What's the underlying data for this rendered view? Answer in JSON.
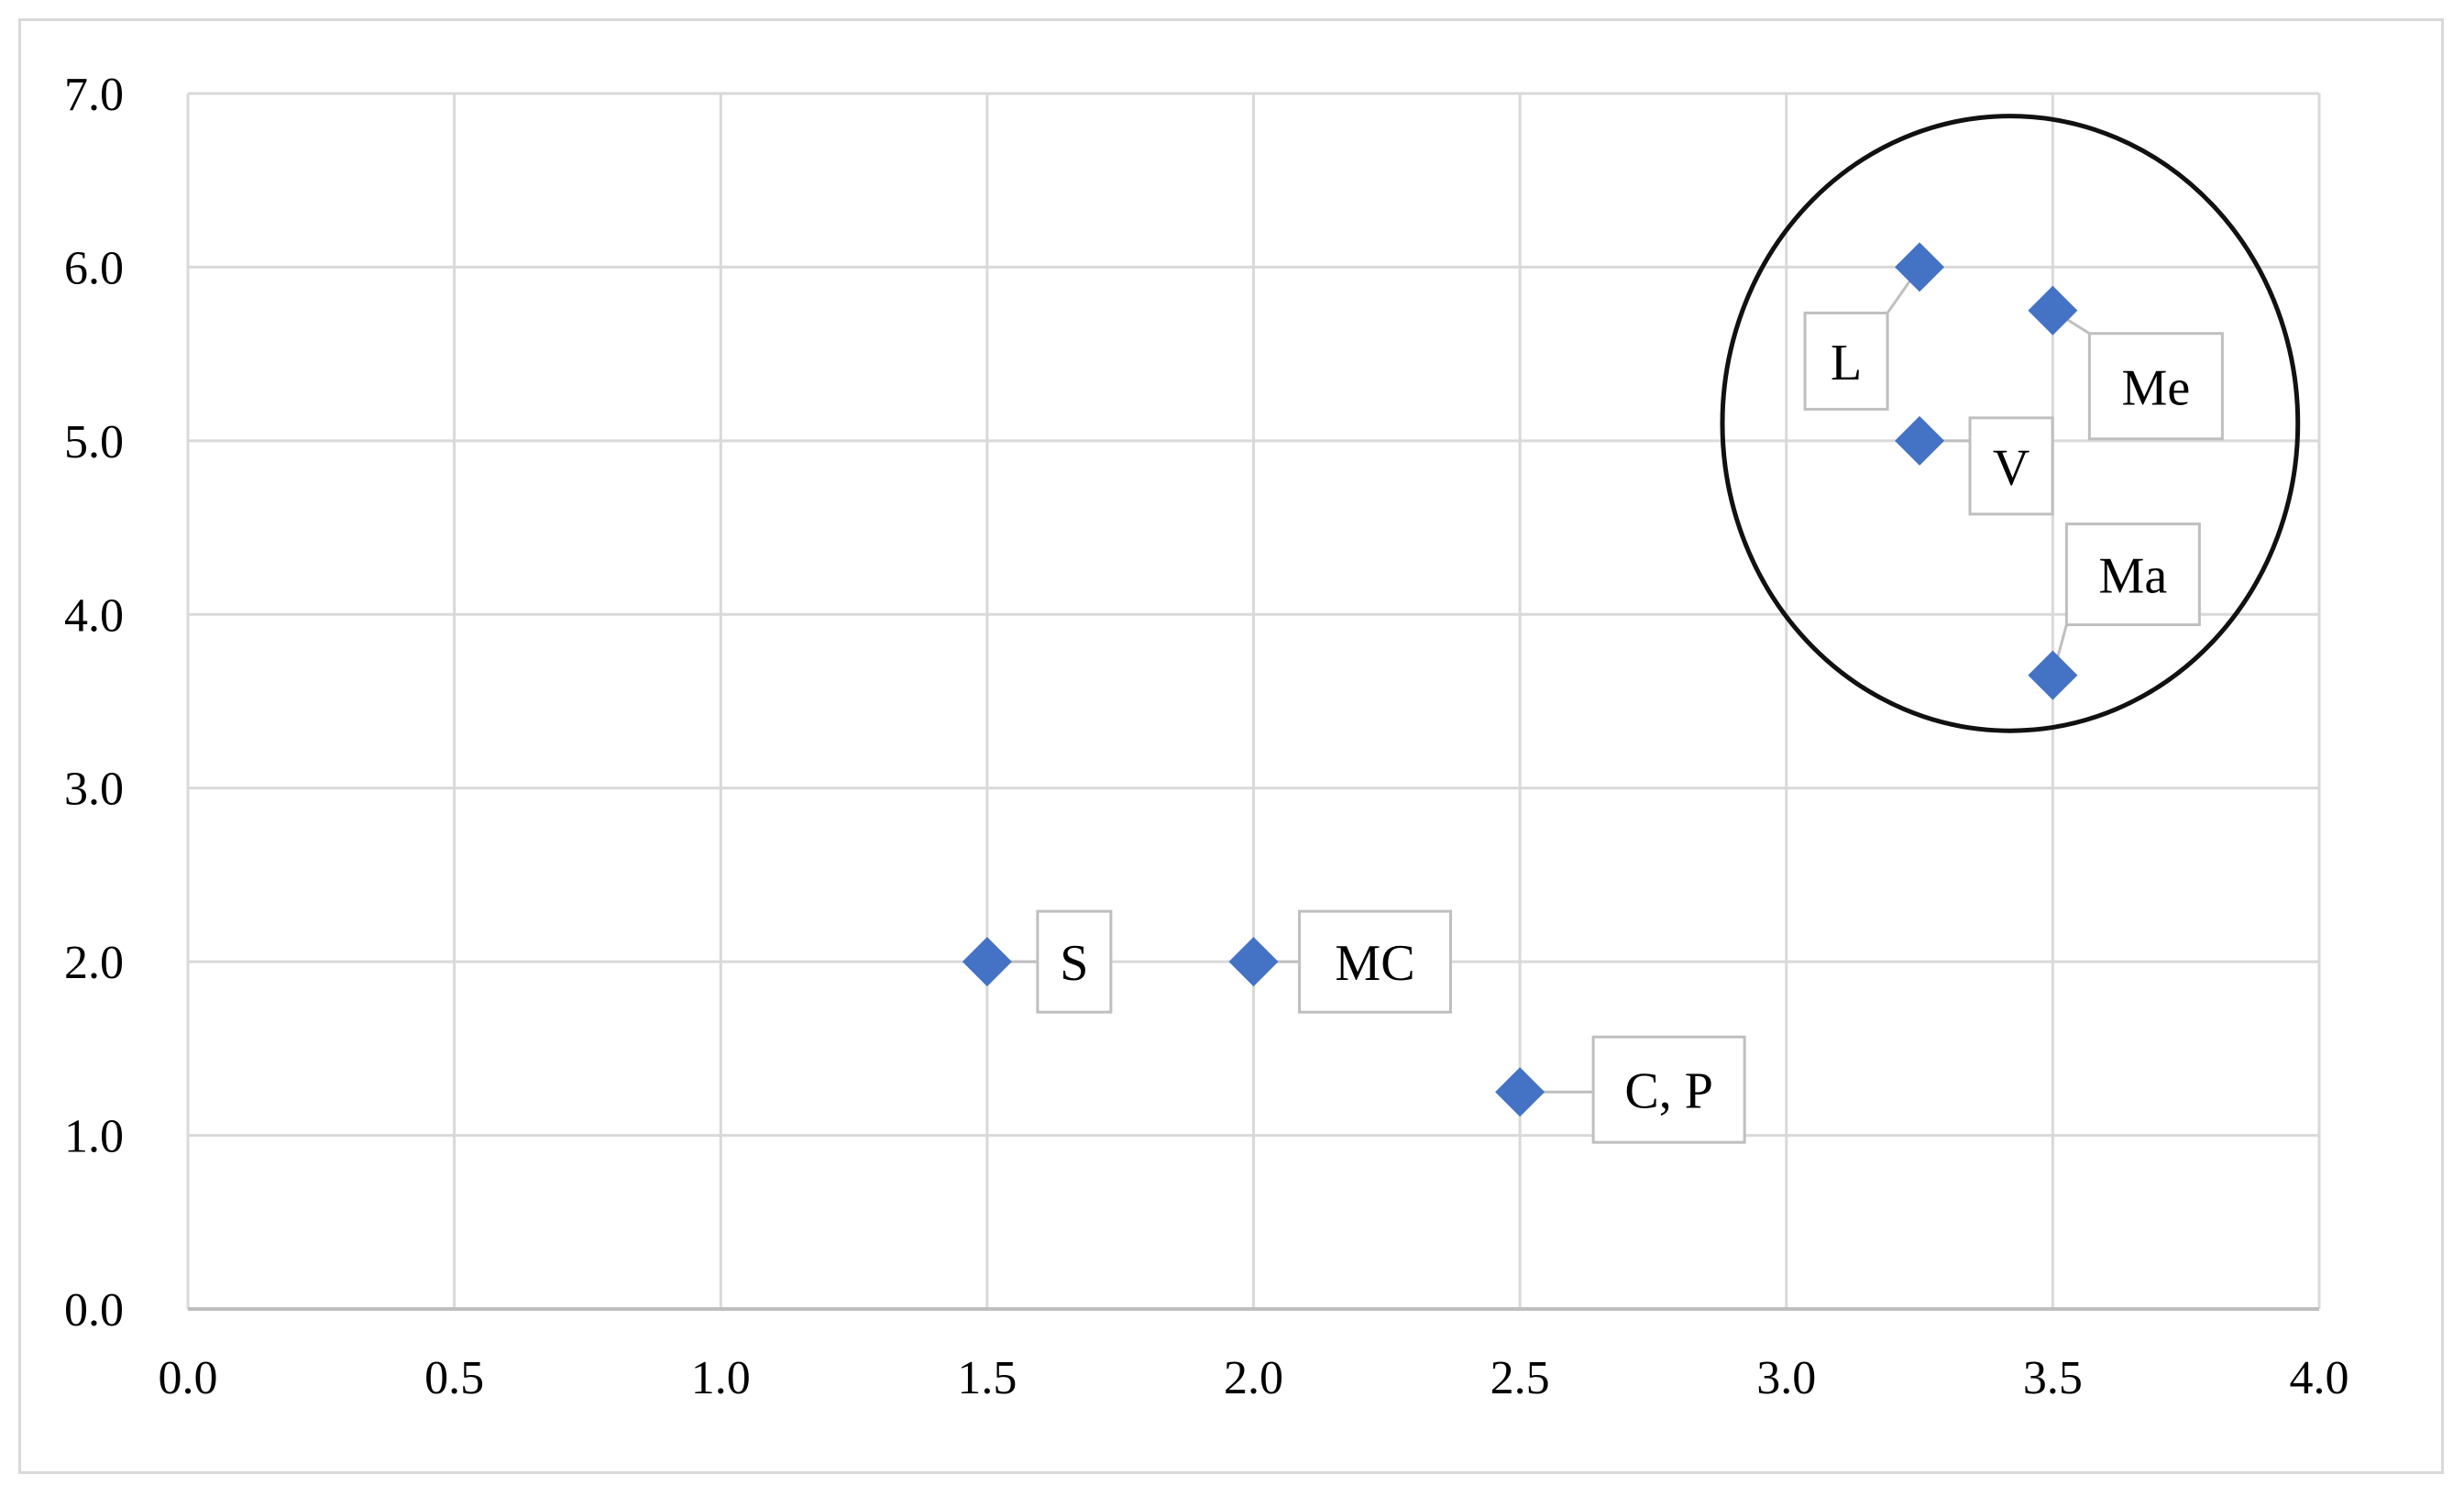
{
  "chart_data": {
    "type": "scatter",
    "title": "",
    "xlabel": "",
    "ylabel": "",
    "xlim": [
      0.0,
      4.0
    ],
    "ylim": [
      0.0,
      7.0
    ],
    "x_ticks": [
      "0.0",
      "0.5",
      "1.0",
      "1.5",
      "2.0",
      "2.5",
      "3.0",
      "3.5",
      "4.0"
    ],
    "y_ticks": [
      "0.0",
      "1.0",
      "2.0",
      "3.0",
      "4.0",
      "5.0",
      "6.0",
      "7.0"
    ],
    "grid": true,
    "marker_color": "#4472C4",
    "points": [
      {
        "label": "S",
        "x": 1.5,
        "y": 2.0
      },
      {
        "label": "MC",
        "x": 2.0,
        "y": 2.0
      },
      {
        "label": "C, P",
        "x": 2.5,
        "y": 1.25
      },
      {
        "label": "L",
        "x": 3.25,
        "y": 6.0
      },
      {
        "label": "Me",
        "x": 3.5,
        "y": 5.75
      },
      {
        "label": "V",
        "x": 3.25,
        "y": 5.0
      },
      {
        "label": "Ma",
        "x": 3.5,
        "y": 3.65
      }
    ],
    "annotations": [
      {
        "type": "ellipse",
        "cx": 3.42,
        "cy": 5.1,
        "rx": 0.54,
        "ry": 1.77
      }
    ]
  }
}
